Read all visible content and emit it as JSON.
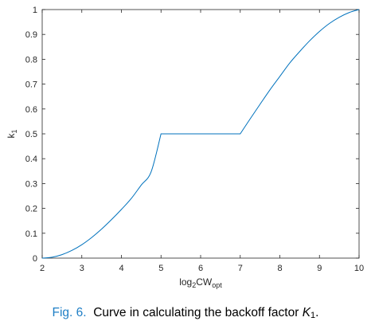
{
  "chart_data": {
    "type": "line",
    "xlabel": {
      "base": "log",
      "sub1": "2",
      "main": "CW",
      "sub2": "opt"
    },
    "ylabel": {
      "main": "k",
      "sub": "1"
    },
    "xlim": [
      2,
      10
    ],
    "ylim": [
      0,
      1
    ],
    "xticks": [
      "2",
      "3",
      "4",
      "5",
      "6",
      "7",
      "8",
      "9",
      "10"
    ],
    "yticks": [
      "0",
      "0.1",
      "0.2",
      "0.3",
      "0.4",
      "0.5",
      "0.6",
      "0.7",
      "0.8",
      "0.9",
      "1"
    ],
    "grid": false,
    "series": [
      {
        "color": "#0072bd",
        "x": [
          2,
          2.25,
          2.5,
          2.75,
          3,
          3.25,
          3.5,
          3.75,
          4,
          4.25,
          4.5,
          4.75,
          5,
          7,
          7.25,
          7.5,
          7.75,
          8,
          8.25,
          8.5,
          8.75,
          9,
          9.25,
          9.5,
          9.75,
          10
        ],
        "y": [
          0,
          0.0035,
          0.014,
          0.031,
          0.054,
          0.083,
          0.117,
          0.155,
          0.196,
          0.24,
          0.294,
          0.347,
          0.5,
          0.5,
          0.56,
          0.619,
          0.677,
          0.731,
          0.785,
          0.831,
          0.874,
          0.912,
          0.944,
          0.969,
          0.988,
          1.0
        ]
      }
    ]
  },
  "caption": {
    "figure_label": "Fig. 6.",
    "text": "Curve in calculating the backoff factor",
    "math_main": "K",
    "math_sub": "1",
    "end": "."
  }
}
